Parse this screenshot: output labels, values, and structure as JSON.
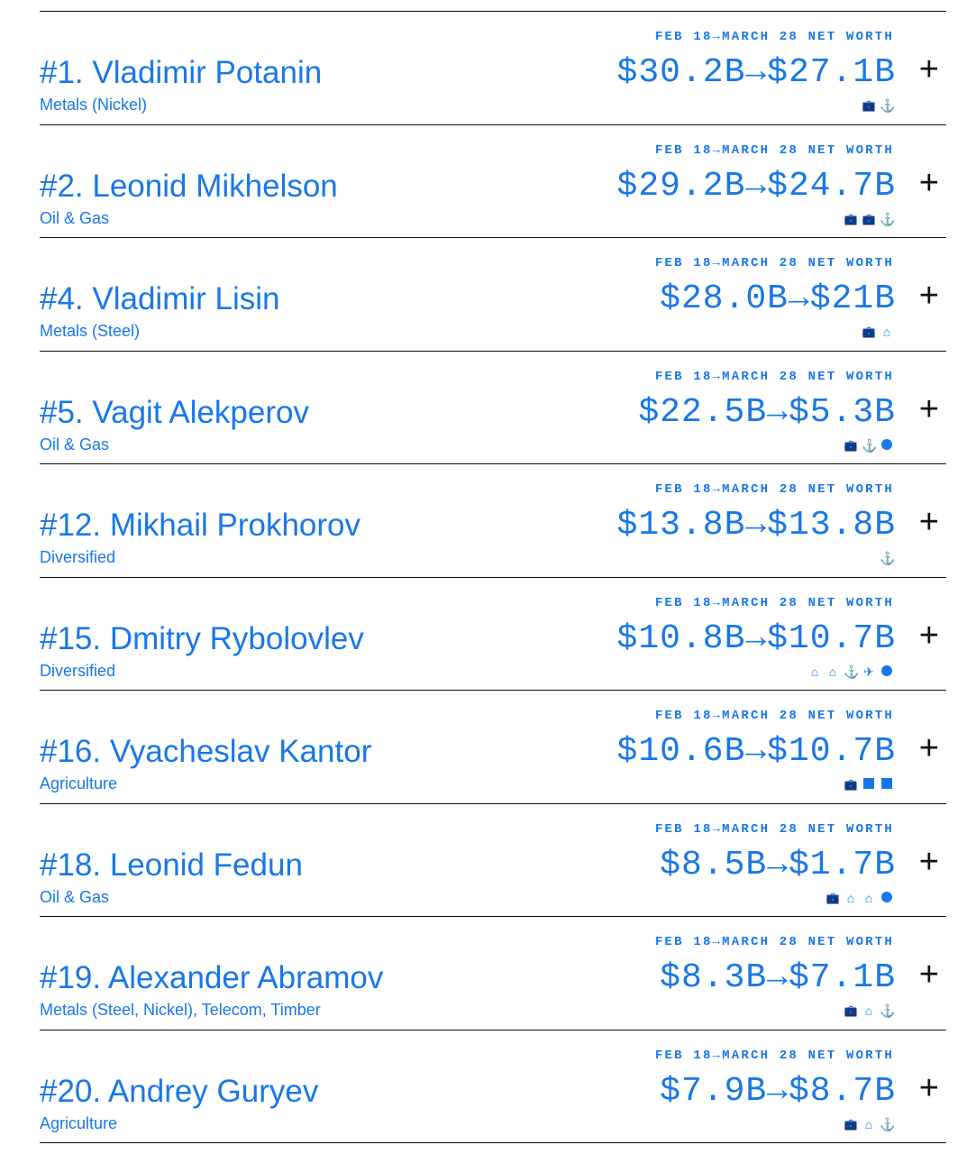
{
  "accent": "#1877e8",
  "label": "FEB 18→MARCH 28 NET WORTH",
  "expand_label": "+",
  "icon_glyphs": {
    "briefcase-icon": "💼",
    "anchor-icon": "⚓",
    "house-icon": "⌂",
    "plane-icon": "✈",
    "circle-icon": "",
    "square-icon": ""
  },
  "rows": [
    {
      "name": "#1. Vladimir Potanin",
      "sector": "Metals (Nickel)",
      "worth": "$30.2B→$27.1B",
      "icons": [
        "briefcase-icon",
        "anchor-icon"
      ]
    },
    {
      "name": "#2. Leonid Mikhelson",
      "sector": "Oil & Gas",
      "worth": "$29.2B→$24.7B",
      "icons": [
        "briefcase-icon",
        "briefcase-icon",
        "anchor-icon"
      ]
    },
    {
      "name": "#4. Vladimir Lisin",
      "sector": "Metals (Steel)",
      "worth": "$28.0B→$21B",
      "icons": [
        "briefcase-icon",
        "house-icon"
      ]
    },
    {
      "name": "#5. Vagit Alekperov",
      "sector": "Oil & Gas",
      "worth": "$22.5B→$5.3B",
      "icons": [
        "briefcase-icon",
        "anchor-icon",
        "circle-icon"
      ]
    },
    {
      "name": "#12. Mikhail Prokhorov",
      "sector": "Diversified",
      "worth": "$13.8B→$13.8B",
      "icons": [
        "anchor-icon"
      ]
    },
    {
      "name": "#15. Dmitry Rybolovlev",
      "sector": "Diversified",
      "worth": "$10.8B→$10.7B",
      "icons": [
        "house-icon",
        "house-icon",
        "anchor-icon",
        "plane-icon",
        "circle-icon"
      ]
    },
    {
      "name": "#16. Vyacheslav Kantor",
      "sector": "Agriculture",
      "worth": "$10.6B→$10.7B",
      "icons": [
        "briefcase-icon",
        "square-icon",
        "square-icon"
      ]
    },
    {
      "name": "#18. Leonid Fedun",
      "sector": "Oil & Gas",
      "worth": "$8.5B→$1.7B",
      "icons": [
        "briefcase-icon",
        "house-icon",
        "house-icon",
        "circle-icon"
      ]
    },
    {
      "name": "#19. Alexander Abramov",
      "sector": "Metals (Steel, Nickel), Telecom, Timber",
      "worth": "$8.3B→$7.1B",
      "icons": [
        "briefcase-icon",
        "house-icon",
        "anchor-icon"
      ]
    },
    {
      "name": "#20. Andrey Guryev",
      "sector": "Agriculture",
      "worth": "$7.9B→$8.7B",
      "icons": [
        "briefcase-icon",
        "house-icon",
        "anchor-icon"
      ]
    }
  ]
}
